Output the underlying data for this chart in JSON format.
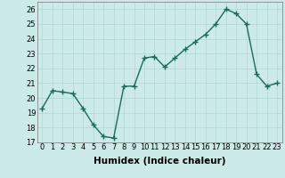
{
  "xlabel": "Humidex (Indice chaleur)",
  "x": [
    0,
    1,
    2,
    3,
    4,
    5,
    6,
    7,
    8,
    9,
    10,
    11,
    12,
    13,
    14,
    15,
    16,
    17,
    18,
    19,
    20,
    21,
    22,
    23
  ],
  "y": [
    19.3,
    20.5,
    20.4,
    20.3,
    19.3,
    18.2,
    17.4,
    17.3,
    20.8,
    20.8,
    22.7,
    22.8,
    22.1,
    22.7,
    23.3,
    23.8,
    24.3,
    25.0,
    26.0,
    25.7,
    25.0,
    21.6,
    20.8,
    21.0
  ],
  "line_color": "#1a6b5a",
  "marker": "+",
  "marker_size": 4,
  "marker_linewidth": 1.0,
  "linewidth": 1.0,
  "ylim": [
    17,
    26.5
  ],
  "yticks": [
    17,
    18,
    19,
    20,
    21,
    22,
    23,
    24,
    25,
    26
  ],
  "xticks": [
    0,
    1,
    2,
    3,
    4,
    5,
    6,
    7,
    8,
    9,
    10,
    11,
    12,
    13,
    14,
    15,
    16,
    17,
    18,
    19,
    20,
    21,
    22,
    23
  ],
  "xlim": [
    -0.5,
    23.5
  ],
  "bg_color": "#cceae7",
  "grid_color": "#b0d8d4",
  "tick_fontsize": 6,
  "label_fontsize": 7.5,
  "label_fontweight": "bold"
}
